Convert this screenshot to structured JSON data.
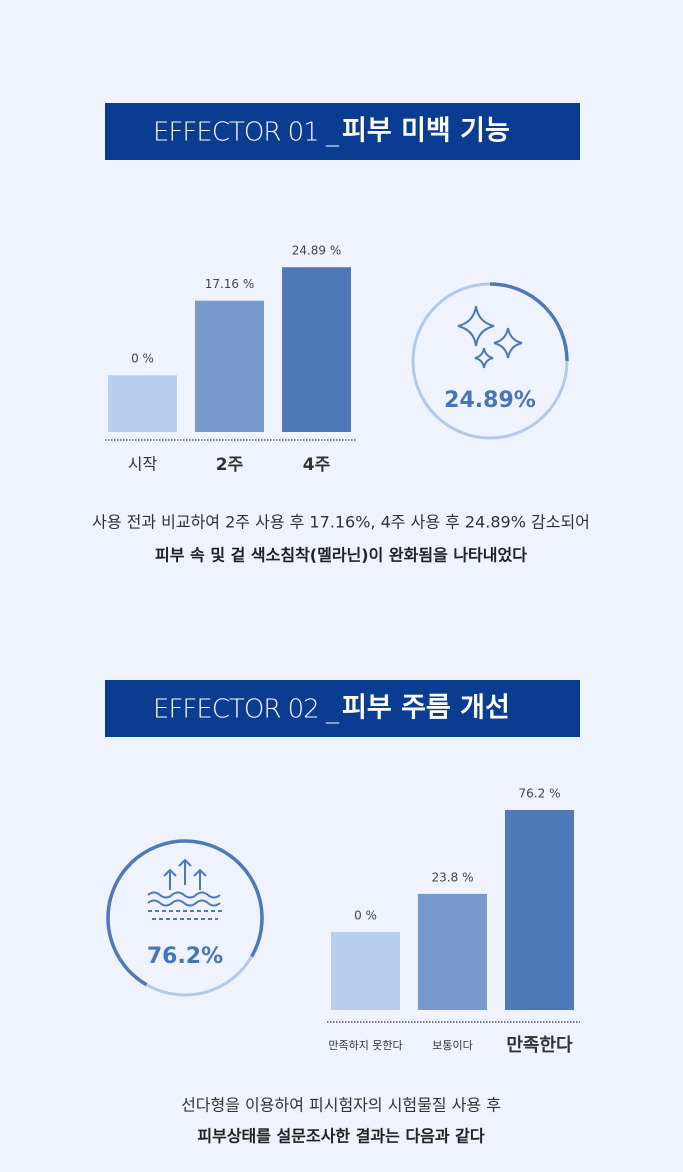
{
  "sections": [
    {
      "header": {
        "label": "EFFECTOR 01 _",
        "title": "피부 미백 기능"
      },
      "badge": "24.89%",
      "caption": [
        "사용 전과 비교하여 2주 사용 후 17.16%, 4주 사용 후 24.89% 감소되어",
        "피부 속 및 겉 색소침착(멜라닌)이 완화됨을 나타내었다"
      ]
    },
    {
      "header": {
        "label": "EFFECTOR 02 _",
        "title": "피부 주름 개선"
      },
      "badge": "76.2%",
      "caption": [
        "선다형을 이용하여 피시험자의 시험물질 사용 후",
        "피부상태를 설문조사한 결과는 다음과 같다"
      ]
    }
  ],
  "chart_data": [
    {
      "type": "bar",
      "categories": [
        "시작",
        "2주",
        "4주"
      ],
      "values": [
        0,
        17.16,
        24.89
      ],
      "value_labels": [
        "0 %",
        "17.16 %",
        "24.89 %"
      ],
      "colors": [
        "#b9cff0",
        "#7799cc",
        "#4e78b9"
      ],
      "ylim": [
        -13.1,
        25.4
      ]
    },
    {
      "type": "bar",
      "categories": [
        "만족하지 못한다",
        "보통이다",
        "만족한다"
      ],
      "values": [
        0,
        23.8,
        76.2
      ],
      "value_labels": [
        "0 %",
        "23.8 %",
        "76.2 %"
      ],
      "colors": [
        "#b9cff0",
        "#7799cc",
        "#4e78b9"
      ],
      "ylim": [
        -48.7,
        76.2
      ]
    }
  ]
}
